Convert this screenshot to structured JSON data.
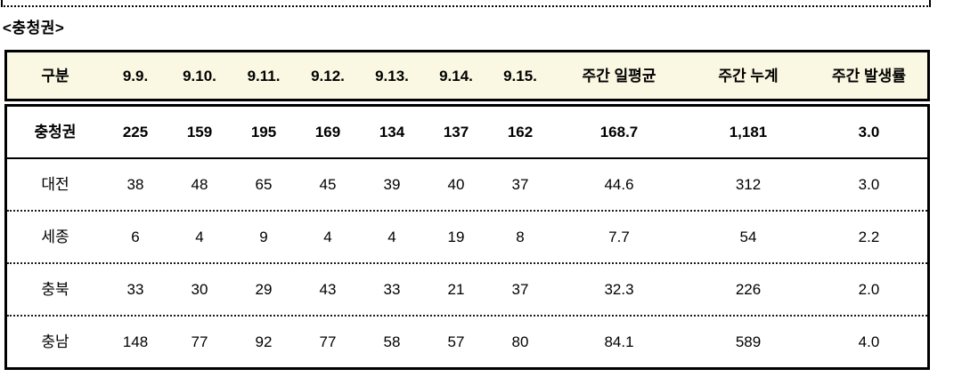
{
  "page": {
    "title": "<충청권>"
  },
  "colors": {
    "header_bg": "#faf8e2",
    "border": "#000000"
  },
  "table": {
    "columns": [
      "구분",
      "9.9.",
      "9.10.",
      "9.11.",
      "9.12.",
      "9.13.",
      "9.14.",
      "9.15.",
      "주간 일평균",
      "주간 누계",
      "주간 발생률"
    ],
    "rows": [
      {
        "label": "충청권",
        "emphasis": true,
        "values": [
          "225",
          "159",
          "195",
          "169",
          "134",
          "137",
          "162",
          "168.7",
          "1,181",
          "3.0"
        ]
      },
      {
        "label": "대전",
        "emphasis": false,
        "values": [
          "38",
          "48",
          "65",
          "45",
          "39",
          "40",
          "37",
          "44.6",
          "312",
          "3.0"
        ]
      },
      {
        "label": "세종",
        "emphasis": false,
        "values": [
          "6",
          "4",
          "9",
          "4",
          "4",
          "19",
          "8",
          "7.7",
          "54",
          "2.2"
        ]
      },
      {
        "label": "충북",
        "emphasis": false,
        "values": [
          "33",
          "30",
          "29",
          "43",
          "33",
          "21",
          "37",
          "32.3",
          "226",
          "2.0"
        ]
      },
      {
        "label": "충남",
        "emphasis": false,
        "values": [
          "148",
          "77",
          "92",
          "77",
          "58",
          "57",
          "80",
          "84.1",
          "589",
          "4.0"
        ]
      }
    ]
  }
}
